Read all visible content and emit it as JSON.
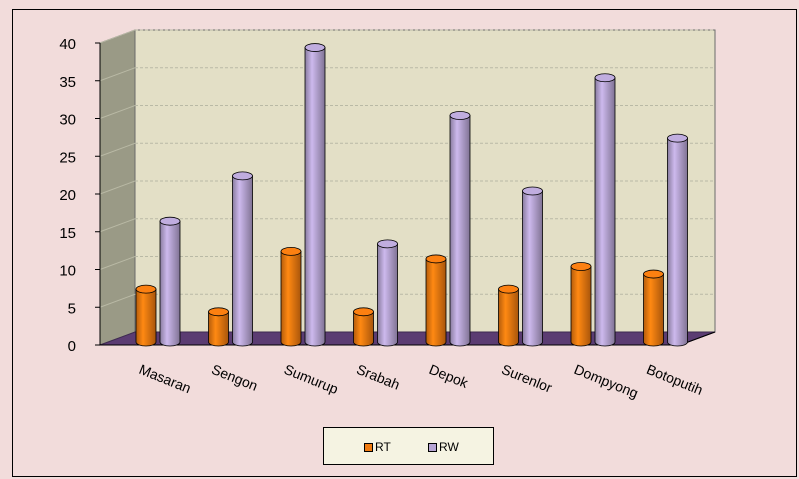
{
  "chart_data": {
    "type": "bar",
    "categories": [
      "Masaran",
      "Sengon",
      "Sumurup",
      "Srabah",
      "Depok",
      "Surenlor",
      "Dompyong",
      "Botoputih"
    ],
    "series": [
      {
        "name": "RT",
        "values": [
          7,
          4,
          12,
          4,
          11,
          7,
          10,
          9
        ],
        "color": "#f07a10"
      },
      {
        "name": "RW",
        "values": [
          16,
          22,
          39,
          13,
          30,
          20,
          35,
          27
        ],
        "color": "#b7a5d4"
      }
    ],
    "yticks": [
      0,
      5,
      10,
      15,
      20,
      25,
      30,
      35,
      40
    ],
    "ylim": [
      0,
      40
    ],
    "grid": true,
    "legend_position": "bottom",
    "style": "3d-cylinder",
    "wall_color": "#e3dfc6",
    "floor_color": "#5b3c72"
  }
}
